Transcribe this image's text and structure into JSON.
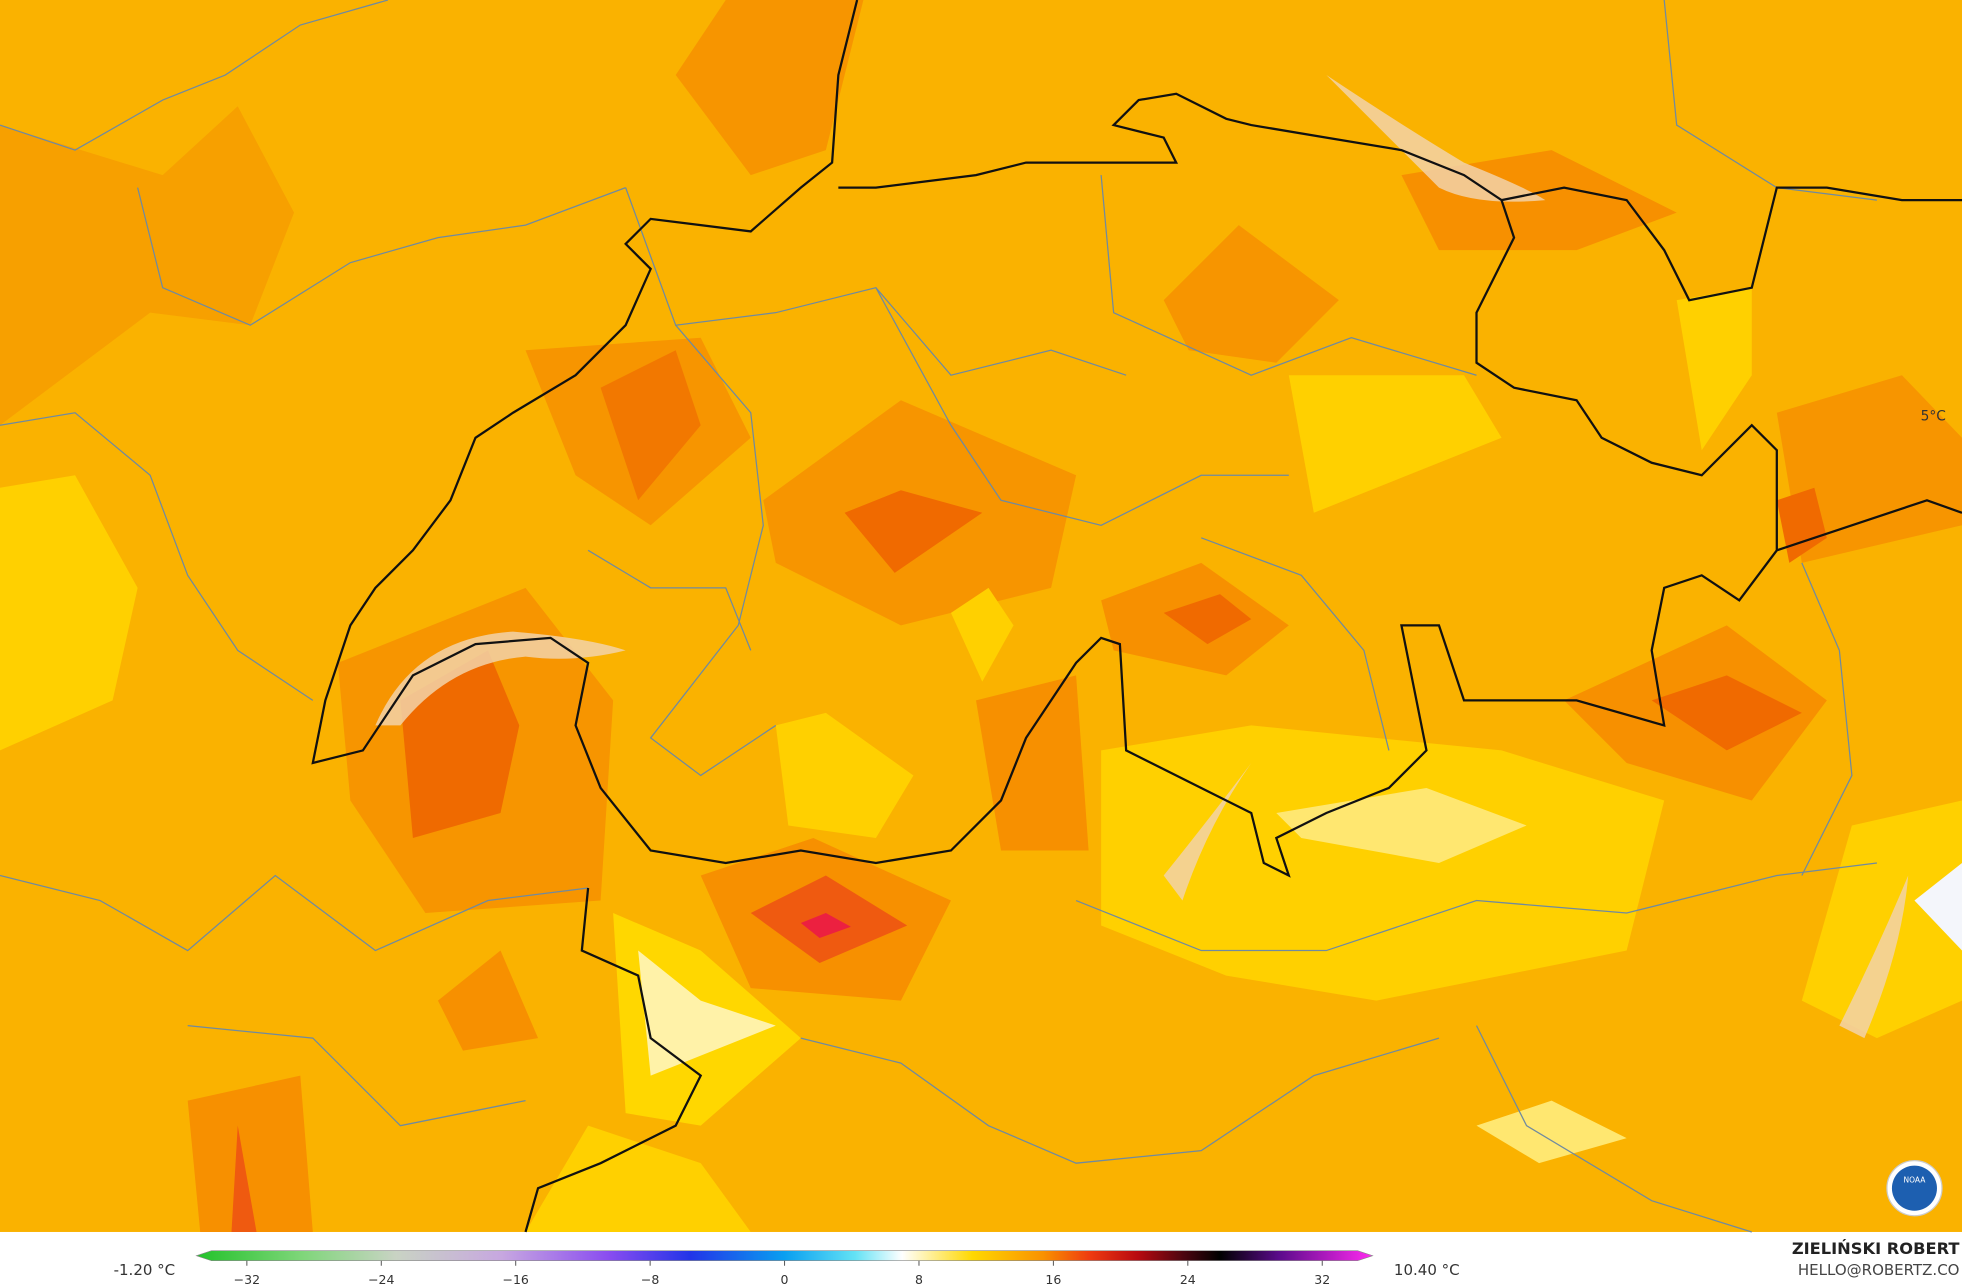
{
  "map": {
    "annotation": "5°C",
    "logo": "NOAA",
    "legend": {
      "min_label": "-1.20 °C",
      "max_label": "10.40 °C",
      "range": [
        -35,
        35
      ],
      "ticks": [
        {
          "value": -32,
          "label": "−32"
        },
        {
          "value": -24,
          "label": "−24"
        },
        {
          "value": -16,
          "label": "−16"
        },
        {
          "value": -8,
          "label": "−8"
        },
        0,
        8,
        16,
        24,
        32
      ]
    },
    "credit": {
      "author": "ZIELIŃSKI ROBERT",
      "email": "HELLO@ROBERTZ.CO"
    }
  }
}
